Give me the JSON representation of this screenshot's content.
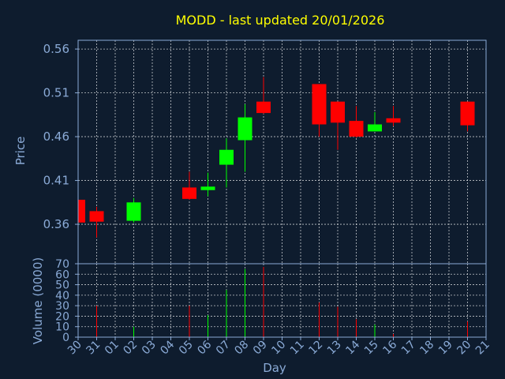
{
  "chart_data": {
    "type": "candlestick",
    "title": "MODD - last updated 20/01/2026",
    "xlabel": "Day",
    "ylabel": "Price",
    "volume_label": "Volume (0000)",
    "x_tick_labels": [
      "30",
      "31",
      "01",
      "02",
      "03",
      "04",
      "05",
      "06",
      "07",
      "08",
      "09",
      "10",
      "11",
      "12",
      "13",
      "14",
      "15",
      "16",
      "17",
      "18",
      "19",
      "20",
      "21"
    ],
    "price_ticks": [
      "0.56",
      "0.51",
      "0.46",
      "0.41",
      "0.36"
    ],
    "price_tick_values": [
      0.56,
      0.51,
      0.46,
      0.41,
      0.36
    ],
    "price_ylim": [
      0.315,
      0.57
    ],
    "volume_ticks": [
      "70",
      "60",
      "50",
      "40",
      "30",
      "20",
      "10",
      "0"
    ],
    "volume_tick_values": [
      70,
      60,
      50,
      40,
      30,
      20,
      10,
      0
    ],
    "volume_ylim": [
      0,
      70
    ],
    "grid": true,
    "colors": {
      "up": "#00ff00",
      "down": "#ff0000",
      "background": "#0e1c2e",
      "text": "#8aaad6",
      "title": "#ffff00"
    },
    "candles": [
      {
        "day": "30",
        "open": 0.388,
        "high": 0.388,
        "low": 0.362,
        "close": 0.362,
        "volume": 0
      },
      {
        "day": "31",
        "open": 0.375,
        "high": 0.38,
        "low": 0.345,
        "close": 0.363,
        "volume": 30
      },
      {
        "day": "02",
        "open": 0.364,
        "high": 0.39,
        "low": 0.362,
        "close": 0.385,
        "volume": 10
      },
      {
        "day": "05",
        "open": 0.402,
        "high": 0.42,
        "low": 0.388,
        "close": 0.389,
        "volume": 30
      },
      {
        "day": "06",
        "open": 0.399,
        "high": 0.419,
        "low": 0.392,
        "close": 0.403,
        "volume": 21
      },
      {
        "day": "07",
        "open": 0.428,
        "high": 0.458,
        "low": 0.402,
        "close": 0.445,
        "volume": 45
      },
      {
        "day": "08",
        "open": 0.456,
        "high": 0.497,
        "low": 0.42,
        "close": 0.482,
        "volume": 65
      },
      {
        "day": "09",
        "open": 0.5,
        "high": 0.528,
        "low": 0.486,
        "close": 0.487,
        "volume": 67
      },
      {
        "day": "12",
        "open": 0.52,
        "high": 0.52,
        "low": 0.46,
        "close": 0.474,
        "volume": 33
      },
      {
        "day": "13",
        "open": 0.5,
        "high": 0.5,
        "low": 0.445,
        "close": 0.476,
        "volume": 29
      },
      {
        "day": "14",
        "open": 0.478,
        "high": 0.495,
        "low": 0.459,
        "close": 0.46,
        "volume": 17
      },
      {
        "day": "15",
        "open": 0.466,
        "high": 0.488,
        "low": 0.466,
        "close": 0.474,
        "volume": 12
      },
      {
        "day": "16",
        "open": 0.481,
        "high": 0.495,
        "low": 0.472,
        "close": 0.476,
        "volume": 3
      },
      {
        "day": "20",
        "open": 0.5,
        "high": 0.5,
        "low": 0.466,
        "close": 0.473,
        "volume": 15
      }
    ]
  }
}
